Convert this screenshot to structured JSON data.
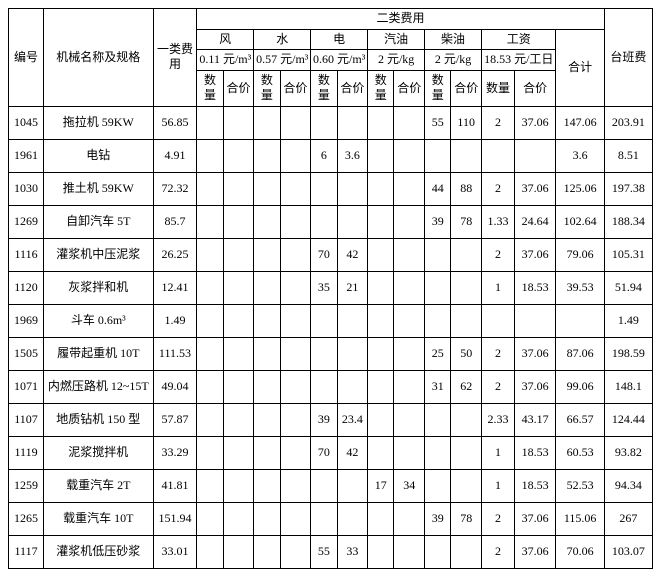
{
  "header": {
    "id": "编号",
    "name": "机械名称及规格",
    "cat1": "一类费用",
    "cat2": "二类费用",
    "sub_wind": "风",
    "sub_water": "水",
    "sub_elec": "电",
    "sub_gas": "汽油",
    "sub_diesel": "柴油",
    "sub_wage": "工资",
    "rate_wind": "0.11 元/m³",
    "rate_water": "0.57 元/m³",
    "rate_elec": "0.60 元/m³",
    "rate_gas": "2 元/kg",
    "rate_diesel": "2 元/kg",
    "rate_wage": "18.53 元/工日",
    "qty": "数量",
    "price": "合价",
    "total": "合计",
    "shift": "台班费"
  },
  "rows": [
    {
      "id": "1045",
      "name": "拖拉机 59KW",
      "cat1": "56.85",
      "wind_q": "",
      "wind_p": "",
      "water_q": "",
      "water_p": "",
      "elec_q": "",
      "elec_p": "",
      "gas_q": "",
      "gas_p": "",
      "diesel_q": "55",
      "diesel_p": "110",
      "wage_q": "2",
      "wage_p": "37.06",
      "total": "147.06",
      "shift": "203.91"
    },
    {
      "id": "1961",
      "name": "电钻",
      "cat1": "4.91",
      "wind_q": "",
      "wind_p": "",
      "water_q": "",
      "water_p": "",
      "elec_q": "6",
      "elec_p": "3.6",
      "gas_q": "",
      "gas_p": "",
      "diesel_q": "",
      "diesel_p": "",
      "wage_q": "",
      "wage_p": "",
      "total": "3.6",
      "shift": "8.51"
    },
    {
      "id": "1030",
      "name": "推土机 59KW",
      "cat1": "72.32",
      "wind_q": "",
      "wind_p": "",
      "water_q": "",
      "water_p": "",
      "elec_q": "",
      "elec_p": "",
      "gas_q": "",
      "gas_p": "",
      "diesel_q": "44",
      "diesel_p": "88",
      "wage_q": "2",
      "wage_p": "37.06",
      "total": "125.06",
      "shift": "197.38"
    },
    {
      "id": "1269",
      "name": "自卸汽车 5T",
      "cat1": "85.7",
      "wind_q": "",
      "wind_p": "",
      "water_q": "",
      "water_p": "",
      "elec_q": "",
      "elec_p": "",
      "gas_q": "",
      "gas_p": "",
      "diesel_q": "39",
      "diesel_p": "78",
      "wage_q": "1.33",
      "wage_p": "24.64",
      "total": "102.64",
      "shift": "188.34"
    },
    {
      "id": "1116",
      "name": "灌浆机中压泥浆",
      "cat1": "26.25",
      "wind_q": "",
      "wind_p": "",
      "water_q": "",
      "water_p": "",
      "elec_q": "70",
      "elec_p": "42",
      "gas_q": "",
      "gas_p": "",
      "diesel_q": "",
      "diesel_p": "",
      "wage_q": "2",
      "wage_p": "37.06",
      "total": "79.06",
      "shift": "105.31"
    },
    {
      "id": "1120",
      "name": "灰浆拌和机",
      "cat1": "12.41",
      "wind_q": "",
      "wind_p": "",
      "water_q": "",
      "water_p": "",
      "elec_q": "35",
      "elec_p": "21",
      "gas_q": "",
      "gas_p": "",
      "diesel_q": "",
      "diesel_p": "",
      "wage_q": "1",
      "wage_p": "18.53",
      "total": "39.53",
      "shift": "51.94"
    },
    {
      "id": "1969",
      "name": "斗车 0.6m³",
      "cat1": "1.49",
      "wind_q": "",
      "wind_p": "",
      "water_q": "",
      "water_p": "",
      "elec_q": "",
      "elec_p": "",
      "gas_q": "",
      "gas_p": "",
      "diesel_q": "",
      "diesel_p": "",
      "wage_q": "",
      "wage_p": "",
      "total": "",
      "shift": "1.49"
    },
    {
      "id": "1505",
      "name": "履带起重机 10T",
      "cat1": "111.53",
      "wind_q": "",
      "wind_p": "",
      "water_q": "",
      "water_p": "",
      "elec_q": "",
      "elec_p": "",
      "gas_q": "",
      "gas_p": "",
      "diesel_q": "25",
      "diesel_p": "50",
      "wage_q": "2",
      "wage_p": "37.06",
      "total": "87.06",
      "shift": "198.59"
    },
    {
      "id": "1071",
      "name": "内燃压路机 12~15T",
      "cat1": "49.04",
      "wind_q": "",
      "wind_p": "",
      "water_q": "",
      "water_p": "",
      "elec_q": "",
      "elec_p": "",
      "gas_q": "",
      "gas_p": "",
      "diesel_q": "31",
      "diesel_p": "62",
      "wage_q": "2",
      "wage_p": "37.06",
      "total": "99.06",
      "shift": "148.1"
    },
    {
      "id": "1107",
      "name": "地质钻机 150 型",
      "cat1": "57.87",
      "wind_q": "",
      "wind_p": "",
      "water_q": "",
      "water_p": "",
      "elec_q": "39",
      "elec_p": "23.4",
      "gas_q": "",
      "gas_p": "",
      "diesel_q": "",
      "diesel_p": "",
      "wage_q": "2.33",
      "wage_p": "43.17",
      "total": "66.57",
      "shift": "124.44"
    },
    {
      "id": "1119",
      "name": "泥浆搅拌机",
      "cat1": "33.29",
      "wind_q": "",
      "wind_p": "",
      "water_q": "",
      "water_p": "",
      "elec_q": "70",
      "elec_p": "42",
      "gas_q": "",
      "gas_p": "",
      "diesel_q": "",
      "diesel_p": "",
      "wage_q": "1",
      "wage_p": "18.53",
      "total": "60.53",
      "shift": "93.82"
    },
    {
      "id": "1259",
      "name": "载重汽车 2T",
      "cat1": "41.81",
      "wind_q": "",
      "wind_p": "",
      "water_q": "",
      "water_p": "",
      "elec_q": "",
      "elec_p": "",
      "gas_q": "17",
      "gas_p": "34",
      "diesel_q": "",
      "diesel_p": "",
      "wage_q": "1",
      "wage_p": "18.53",
      "total": "52.53",
      "shift": "94.34"
    },
    {
      "id": "1265",
      "name": "载重汽车 10T",
      "cat1": "151.94",
      "wind_q": "",
      "wind_p": "",
      "water_q": "",
      "water_p": "",
      "elec_q": "",
      "elec_p": "",
      "gas_q": "",
      "gas_p": "",
      "diesel_q": "39",
      "diesel_p": "78",
      "wage_q": "2",
      "wage_p": "37.06",
      "total": "115.06",
      "shift": "267"
    },
    {
      "id": "1117",
      "name": "灌浆机低压砂浆",
      "cat1": "33.01",
      "wind_q": "",
      "wind_p": "",
      "water_q": "",
      "water_p": "",
      "elec_q": "55",
      "elec_p": "33",
      "gas_q": "",
      "gas_p": "",
      "diesel_q": "",
      "diesel_p": "",
      "wage_q": "2",
      "wage_p": "37.06",
      "total": "70.06",
      "shift": "103.07"
    }
  ]
}
